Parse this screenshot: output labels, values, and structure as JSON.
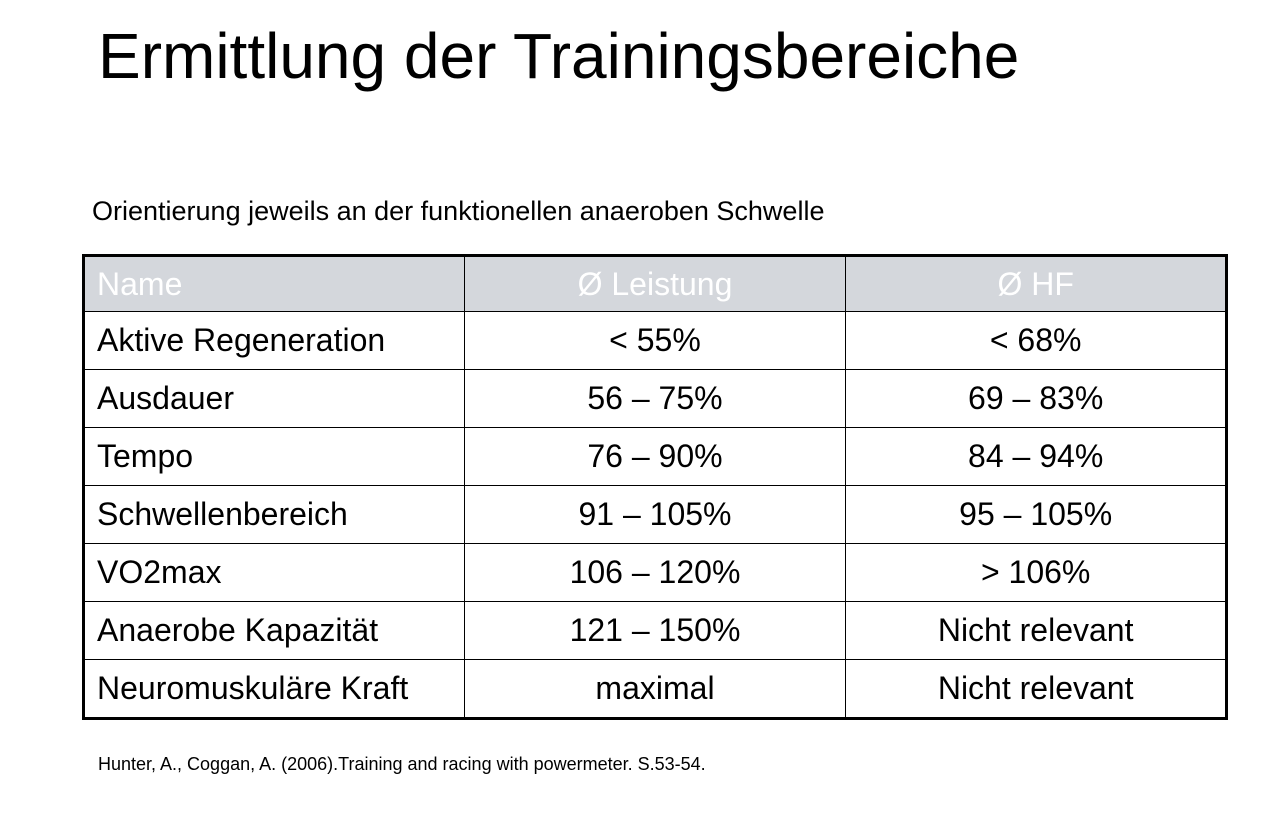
{
  "title": "Ermittlung der Trainingsbereiche",
  "subtitle": "Orientierung jeweils an der funktionellen anaeroben Schwelle",
  "table": {
    "headers": [
      "Name",
      "Ø Leistung",
      "Ø HF"
    ],
    "rows": [
      [
        "Aktive Regeneration",
        "< 55%",
        "< 68%"
      ],
      [
        "Ausdauer",
        "56 – 75%",
        "69 – 83%"
      ],
      [
        "Tempo",
        "76 – 90%",
        "84 – 94%"
      ],
      [
        "Schwellenbereich",
        "91 – 105%",
        "95 – 105%"
      ],
      [
        "VO2max",
        "106 – 120%",
        "> 106%"
      ],
      [
        "Anaerobe Kapazität",
        "121 – 150%",
        "Nicht relevant"
      ],
      [
        "Neuromuskuläre Kraft",
        "maximal",
        "Nicht relevant"
      ]
    ]
  },
  "citation": "Hunter, A., Coggan, A. (2006).Training and racing with powermeter. S.53-54.",
  "colors": {
    "header_background": "#d4d7dc",
    "header_text": "#ffffff",
    "border": "#000000"
  }
}
